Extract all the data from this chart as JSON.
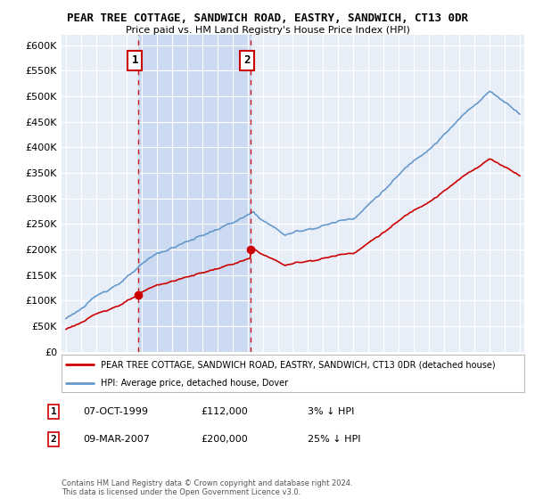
{
  "title": "PEAR TREE COTTAGE, SANDWICH ROAD, EASTRY, SANDWICH, CT13 0DR",
  "subtitle": "Price paid vs. HM Land Registry's House Price Index (HPI)",
  "legend_line1": "PEAR TREE COTTAGE, SANDWICH ROAD, EASTRY, SANDWICH, CT13 0DR (detached house)",
  "legend_line2": "HPI: Average price, detached house, Dover",
  "annotation1_label": "1",
  "annotation1_date": "07-OCT-1999",
  "annotation1_price": "£112,000",
  "annotation1_hpi": "3% ↓ HPI",
  "annotation2_label": "2",
  "annotation2_date": "09-MAR-2007",
  "annotation2_price": "£200,000",
  "annotation2_hpi": "25% ↓ HPI",
  "footer": "Contains HM Land Registry data © Crown copyright and database right 2024.\nThis data is licensed under the Open Government Licence v3.0.",
  "hpi_color": "#6699CC",
  "price_color": "#CC0000",
  "vline_color": "#CC0000",
  "background_color": "#FFFFFF",
  "plot_bg_color": "#E8EEF8",
  "shade_color": "#C8D8F0",
  "ylim": [
    0,
    620000
  ],
  "yticks": [
    0,
    50000,
    100000,
    150000,
    200000,
    250000,
    300000,
    350000,
    400000,
    450000,
    500000,
    550000,
    600000
  ],
  "x_start_year": 1995,
  "x_end_year": 2025,
  "sale1_year_float": 1999.75,
  "sale1_price": 112000,
  "sale2_year_float": 2007.17,
  "sale2_price": 200000
}
